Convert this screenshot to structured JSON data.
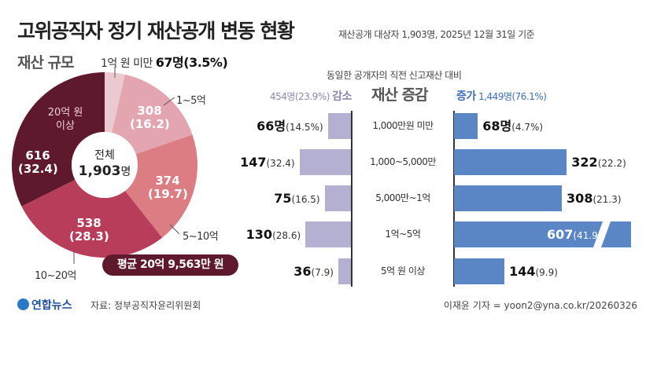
{
  "header": {
    "title": "고위공직자 정기 재산공개 변동 현황",
    "subtitle": "재산공개 대상자 1,903명, 2025년 12월 31일 기준"
  },
  "chart_data": [
    {
      "type": "pie",
      "title": "재산 규모",
      "center_label": "전체",
      "center_value": "1,903",
      "center_unit": "명",
      "categories": [
        "1억 원 미만",
        "1~5억",
        "5~10억",
        "10~20억",
        "20억 원 이상"
      ],
      "values": [
        67,
        308,
        374,
        538,
        616
      ],
      "percents": [
        3.5,
        16.2,
        19.7,
        28.3,
        32.4
      ],
      "colors": [
        "#ebc9ce",
        "#e3a5b0",
        "#dc7d83",
        "#b83d5b",
        "#5e1a2c"
      ],
      "labels": {
        "under1": "1억 원 미만",
        "under1_value": "67명(3.5%)",
        "s1": "1~5억",
        "s1_value": "308",
        "s1_pct": "(16.2)",
        "s2": "5~10억",
        "s2_value": "374",
        "s2_pct": "(19.7)",
        "s3": "10~20억",
        "s3_value": "538",
        "s3_pct": "(28.3)",
        "s4a": "20억 원",
        "s4b": "이상",
        "s4_value": "616",
        "s4_pct": "(32.4)"
      },
      "average": "평균 20억 9,563만 원"
    },
    {
      "type": "bar",
      "orientation": "horizontal-diverging",
      "subtitle": "동일한 공개자의 직전 신고재산 대비",
      "title": "재산 증감",
      "decrease_label": "감소",
      "decrease_total": "454명(23.9%)",
      "increase_label": "증가",
      "increase_total": "1,449명(76.1%)",
      "categories": [
        "1,000만원 미만",
        "1,000~5,000만",
        "5,000만~1억",
        "1억~5억",
        "5억 원 이상"
      ],
      "series": [
        {
          "name": "감소",
          "values": [
            66,
            147,
            75,
            130,
            36
          ],
          "percents": [
            "14.5",
            "32.4",
            "16.5",
            "28.6",
            "7.9"
          ],
          "color": "#b3b0d1"
        },
        {
          "name": "증가",
          "values": [
            68,
            322,
            308,
            607,
            144
          ],
          "percents": [
            "4.7",
            "22.2",
            "21.3",
            "41.9",
            "9.9"
          ],
          "color": "#5b86c6"
        }
      ],
      "first_row_unit": "명",
      "broken_bar": "607"
    }
  ],
  "footer": {
    "logo": "연합뉴스",
    "source": "자료: 정부공직자윤리위원회",
    "credit": "이재윤 기자 = yoon2@yna.co.kr/20260326"
  }
}
